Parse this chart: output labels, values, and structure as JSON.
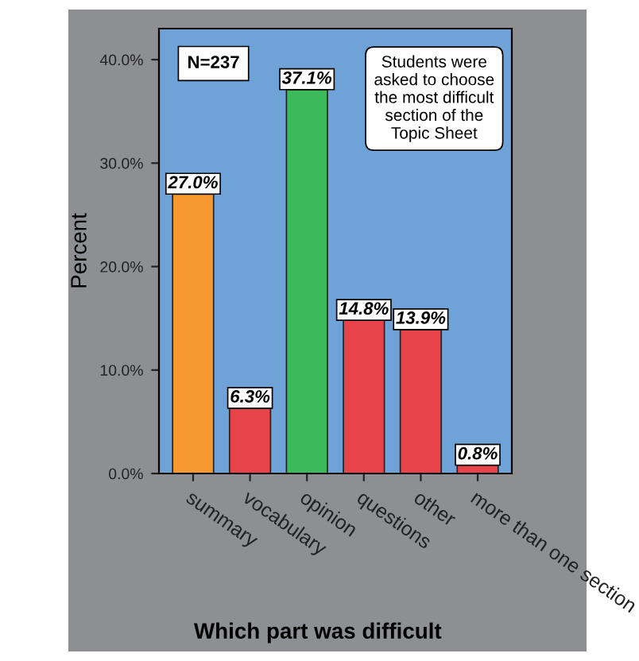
{
  "chart_data": {
    "type": "bar",
    "xlabel": "Which part was difficult",
    "ylabel": "Percent",
    "categories": [
      "summary",
      "vocabulary",
      "opinion",
      "questions",
      "other",
      "more than one section"
    ],
    "values": [
      27.0,
      6.3,
      37.1,
      14.8,
      13.9,
      0.8
    ],
    "colors": [
      "#f7982e",
      "#e8424a",
      "#3cb95a",
      "#e8424a",
      "#e8424a",
      "#e8424a"
    ],
    "value_labels": [
      "27.0%",
      "6.3%",
      "37.1%",
      "14.8%",
      "13.9%",
      "0.8%"
    ],
    "ylim": [
      0,
      43
    ],
    "yticks": [
      {
        "value": 0,
        "label": "0.0%"
      },
      {
        "value": 10,
        "label": "10.0%"
      },
      {
        "value": 20,
        "label": "20.0%"
      },
      {
        "value": 30,
        "label": "30.0%"
      },
      {
        "value": 40,
        "label": "40.0%"
      }
    ],
    "annotations": [
      "N=237",
      "Students were\nasked to choose\nthe most difficult\nsection of the\nTopic Sheet"
    ],
    "grid": false
  }
}
